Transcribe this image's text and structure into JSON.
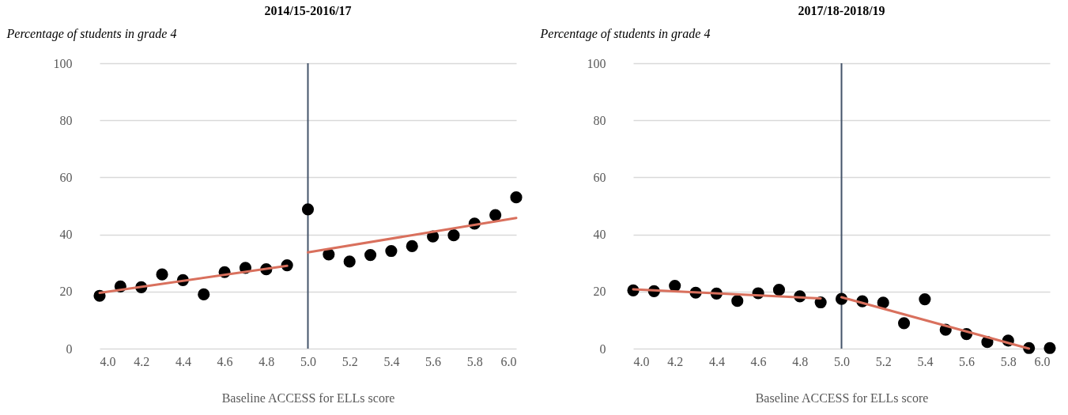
{
  "chart_data": [
    {
      "type": "scatter",
      "title": "2014/15-2016/17",
      "ylabel": "Percentage of students in grade 4",
      "xlabel": "Baseline ACCESS for ELLs score",
      "x": [
        4.0,
        4.1,
        4.2,
        4.3,
        4.4,
        4.5,
        4.6,
        4.7,
        4.8,
        4.9,
        5.0,
        5.1,
        5.2,
        5.3,
        5.4,
        5.5,
        5.6,
        5.7,
        5.8,
        5.9,
        6.0
      ],
      "series": [
        {
          "color": "#000000",
          "marker": "circle",
          "values": [
            18.5,
            21.8,
            21.5,
            26,
            24,
            19,
            26.8,
            28.3,
            27.8,
            29.2,
            48.8,
            33,
            30.5,
            32.8,
            34.2,
            35.9,
            39.3,
            39.7,
            43.8,
            46.8,
            53
          ]
        },
        {
          "type": "line",
          "color": "#d9705d",
          "marker": "none",
          "x": [
            4.0,
            4.9
          ],
          "values": [
            19.5,
            29
          ]
        },
        {
          "type": "line",
          "color": "#d9705d",
          "marker": "none",
          "x": [
            5.0,
            6.0
          ],
          "values": [
            33.7,
            45.8
          ]
        }
      ],
      "ref_lines": [
        {
          "axis": "x",
          "value": 5.0,
          "color": "#44546a"
        }
      ],
      "xlim": [
        4,
        6
      ],
      "xticks": [
        {
          "value": 4,
          "label": "4.0"
        },
        4.2,
        4.4,
        4.6,
        4.8,
        {
          "value": 5,
          "label": "5.0"
        },
        5.2,
        5.4,
        5.6,
        5.8,
        {
          "value": 6,
          "label": "6.0"
        }
      ],
      "ylim": [
        0,
        100
      ],
      "yticks": [
        0,
        20,
        40,
        60,
        80,
        100
      ],
      "grid": "y"
    },
    {
      "type": "scatter",
      "title": "2017/18-2018/19",
      "ylabel": "Percentage of students in grade 4",
      "xlabel": "Baseline ACCESS for ELLs score",
      "x": [
        4.0,
        4.1,
        4.2,
        4.3,
        4.4,
        4.5,
        4.6,
        4.7,
        4.8,
        4.9,
        5.0,
        5.1,
        5.2,
        5.3,
        5.4,
        5.5,
        5.6,
        5.7,
        5.8,
        5.9,
        6.0
      ],
      "series": [
        {
          "color": "#000000",
          "marker": "circle",
          "values": [
            20.4,
            20.1,
            22,
            19.6,
            19.3,
            16.7,
            19.4,
            20.6,
            18.3,
            16.2,
            17.4,
            16.6,
            16.1,
            8.9,
            17.3,
            6.6,
            5.1,
            2.3,
            2.8,
            0.2,
            0.2
          ]
        },
        {
          "type": "line",
          "color": "#d9705d",
          "marker": "none",
          "x": [
            4.0,
            4.9
          ],
          "values": [
            20.8,
            17.6
          ]
        },
        {
          "type": "line",
          "color": "#d9705d",
          "marker": "none",
          "x": [
            5.0,
            5.9
          ],
          "values": [
            18,
            0
          ]
        }
      ],
      "ref_lines": [
        {
          "axis": "x",
          "value": 5.0,
          "color": "#44546a"
        }
      ],
      "xlim": [
        4,
        6
      ],
      "xticks": [
        {
          "value": 4,
          "label": "4.0"
        },
        4.2,
        4.4,
        4.6,
        4.8,
        {
          "value": 5,
          "label": "5.0"
        },
        5.2,
        5.4,
        5.6,
        5.8,
        {
          "value": 6,
          "label": "6.0"
        }
      ],
      "ylim": [
        0,
        100
      ],
      "yticks": [
        0,
        20,
        40,
        60,
        80,
        100
      ],
      "grid": "y"
    }
  ]
}
